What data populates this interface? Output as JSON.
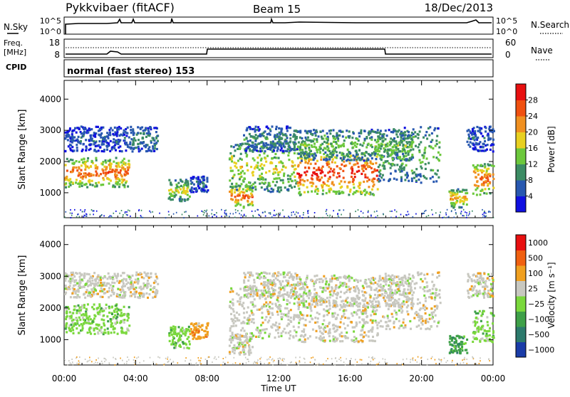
{
  "header": {
    "station": "Pykkvibaer (fitACF)",
    "beam": "Beam 15",
    "date": "18/Dec/2013"
  },
  "noise_panel": {
    "left_label": "N.Sky",
    "left_ticks": [
      "10^5",
      "10^0"
    ],
    "right_ticks": [
      "10^5",
      "10^0"
    ],
    "right_label": "N.Search"
  },
  "freq_panel": {
    "left_label_1": "Freq.",
    "left_label_2": "[MHz]",
    "left_ticks": [
      "18",
      "8"
    ],
    "right_ticks": [
      "60",
      "0"
    ],
    "right_label": "Nave"
  },
  "cpid": {
    "label": "CPID",
    "value": "normal (fast stereo) 153"
  },
  "chart_data": [
    {
      "type": "heatmap",
      "quantity": "Power",
      "ylabel": "Slant Range [km]",
      "ylim": [
        200,
        4600
      ],
      "yticks": [
        "1000",
        "2000",
        "3000",
        "4000"
      ],
      "xlim": [
        0,
        24
      ],
      "colorbar": {
        "label": "Power [dB]",
        "ticks": [
          "4",
          "8",
          "12",
          "16",
          "20",
          "24",
          "28"
        ],
        "colors": [
          "#1010e0",
          "#2858b0",
          "#3c8c64",
          "#6cc83c",
          "#e8d020",
          "#f09020",
          "#f05010",
          "#e81010"
        ]
      }
    },
    {
      "type": "heatmap",
      "quantity": "Velocity",
      "ylabel": "Slant Range [km]",
      "ylim": [
        200,
        4600
      ],
      "yticks": [
        "1000",
        "2000",
        "3000",
        "4000"
      ],
      "xlim": [
        0,
        24
      ],
      "colorbar": {
        "label": "Velocity [m s⁻¹]",
        "ticks": [
          "1000",
          "500",
          "100",
          "25",
          "−25",
          "−100",
          "−500",
          "−1000"
        ],
        "colors": [
          "#1a3ca8",
          "#2c7a6c",
          "#3ea048",
          "#7ad83c",
          "#c8c8c0",
          "#f0a020",
          "#f06010",
          "#e81010"
        ]
      }
    }
  ],
  "time_axis": {
    "ticks": [
      "00:00",
      "04:00",
      "08:00",
      "12:00",
      "16:00",
      "20:00",
      "00:00"
    ],
    "label": "Time UT"
  }
}
